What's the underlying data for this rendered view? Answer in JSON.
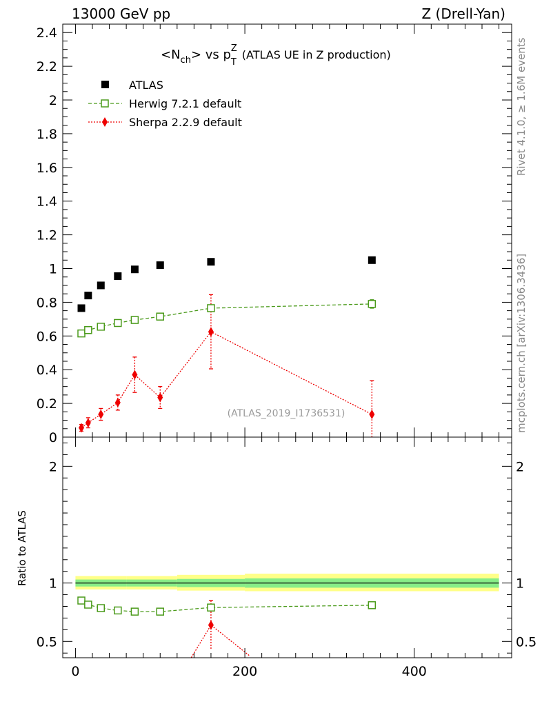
{
  "header": {
    "energy": "13000 GeV pp",
    "process": "Z (Drell-Yan)"
  },
  "side_labels": {
    "rivet": "Rivet 4.1.0, ≥ 1.6M events",
    "mcplots": "mcplots.cern.ch [arXiv:1306.3436]"
  },
  "title": {
    "prefix": "<N",
    "sub": "ch",
    "mid": "> vs p",
    "sup": "Z",
    "sub2": "T",
    "suffix": "(ATLAS UE in Z production)"
  },
  "watermark": "(ATLAS_2019_I1736531)",
  "ratio_ylabel": "Ratio to ATLAS",
  "colors": {
    "atlas": "#000000",
    "herwig": "#4a9a1a",
    "sherpa": "#ee0000",
    "band_inner": "#88ee88",
    "band_outer": "#ffff88"
  },
  "chart_data": [
    {
      "type": "scatter",
      "panel": "main",
      "xlim": [
        -15,
        515
      ],
      "ylim": [
        0,
        2.45
      ],
      "y_ticks": [
        {
          "v": 0,
          "label": "0"
        },
        {
          "v": 0.2,
          "label": "0.2"
        },
        {
          "v": 0.4,
          "label": "0.4"
        },
        {
          "v": 0.6,
          "label": "0.6"
        },
        {
          "v": 0.8,
          "label": "0.8"
        },
        {
          "v": 1.0,
          "label": "1"
        },
        {
          "v": 1.2,
          "label": "1.2"
        },
        {
          "v": 1.4,
          "label": "1.4"
        },
        {
          "v": 1.6,
          "label": "1.6"
        },
        {
          "v": 1.8,
          "label": "1.8"
        },
        {
          "v": 2.0,
          "label": "2"
        },
        {
          "v": 2.2,
          "label": "2.2"
        },
        {
          "v": 2.4,
          "label": "2.4"
        }
      ],
      "legend_position": "top-left",
      "series": [
        {
          "name": "ATLAS",
          "key": "atlas",
          "marker": "filled-square",
          "x": [
            7,
            15,
            30,
            50,
            70,
            100,
            160,
            350
          ],
          "y": [
            0.765,
            0.84,
            0.9,
            0.955,
            0.995,
            1.02,
            1.04,
            1.05
          ]
        },
        {
          "name": "Herwig 7.2.1 default",
          "key": "herwig",
          "marker": "open-square",
          "line": "dashed",
          "x": [
            7,
            15,
            30,
            50,
            70,
            100,
            160,
            350
          ],
          "y": [
            0.615,
            0.635,
            0.655,
            0.677,
            0.695,
            0.715,
            0.765,
            0.79
          ],
          "err": [
            0.008,
            0.008,
            0.008,
            0.008,
            0.008,
            0.01,
            0.012,
            0.025
          ]
        },
        {
          "name": "Sherpa 2.2.9 default",
          "key": "sherpa",
          "marker": "filled-diamond",
          "line": "dotted",
          "x": [
            7,
            15,
            30,
            50,
            70,
            100,
            160,
            350
          ],
          "y": [
            0.055,
            0.085,
            0.135,
            0.205,
            0.37,
            0.235,
            0.625,
            0.135
          ],
          "err": [
            0.02,
            0.03,
            0.035,
            0.045,
            0.105,
            0.065,
            0.22,
            0.2
          ]
        }
      ]
    },
    {
      "type": "scatter",
      "panel": "ratio",
      "xlim": [
        -15,
        515
      ],
      "ylim": [
        0.36,
        2.25
      ],
      "x_ticks": [
        {
          "v": 0,
          "label": "0"
        },
        {
          "v": 200,
          "label": "200"
        },
        {
          "v": 400,
          "label": "400"
        }
      ],
      "y_ticks": [
        {
          "v": 0.5,
          "label": "0.5"
        },
        {
          "v": 1.0,
          "label": "1"
        },
        {
          "v": 2.0,
          "label": "2"
        }
      ],
      "bands": [
        {
          "x0": 0,
          "x1": 60,
          "inner": [
            0.97,
            1.03
          ],
          "outer": [
            0.945,
            1.06
          ]
        },
        {
          "x0": 60,
          "x1": 120,
          "inner": [
            0.97,
            1.03
          ],
          "outer": [
            0.945,
            1.06
          ]
        },
        {
          "x0": 120,
          "x1": 200,
          "inner": [
            0.965,
            1.035
          ],
          "outer": [
            0.935,
            1.07
          ]
        },
        {
          "x0": 200,
          "x1": 500,
          "inner": [
            0.96,
            1.04
          ],
          "outer": [
            0.93,
            1.08
          ]
        }
      ],
      "series": [
        {
          "name": "Herwig 7.2.1 default",
          "key": "herwig",
          "marker": "open-square",
          "line": "dashed",
          "x": [
            7,
            15,
            30,
            50,
            70,
            100,
            160,
            350
          ],
          "y": [
            0.85,
            0.815,
            0.785,
            0.765,
            0.755,
            0.755,
            0.79,
            0.81
          ],
          "err": [
            0.01,
            0.01,
            0.01,
            0.01,
            0.01,
            0.01,
            0.02,
            0.025
          ]
        },
        {
          "name": "Sherpa 2.2.9 default",
          "key": "sherpa",
          "marker": "filled-diamond",
          "line": "dotted",
          "x": [
            130,
            160,
            205
          ],
          "y": [
            0.28,
            0.64,
            0.38
          ],
          "err": [
            0,
            0.21,
            0
          ]
        }
      ]
    }
  ]
}
